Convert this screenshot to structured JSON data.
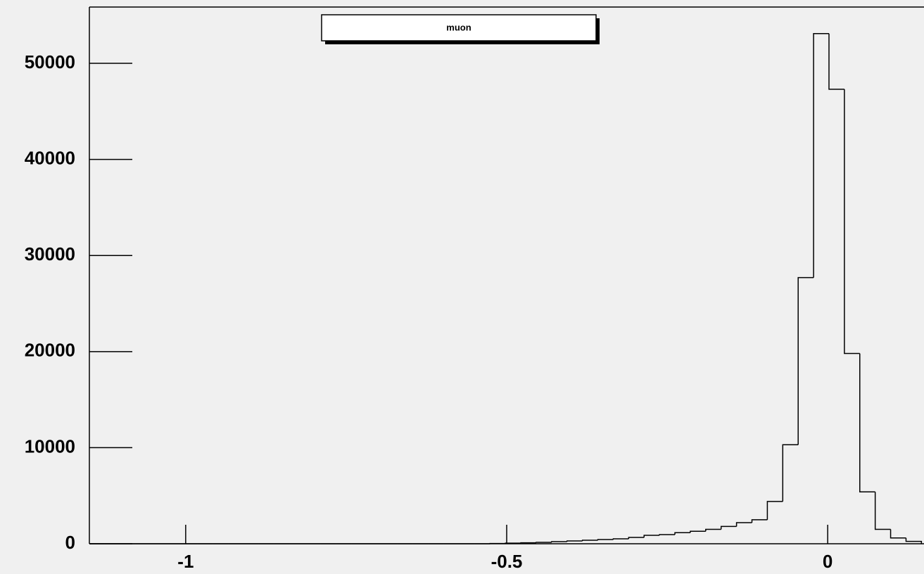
{
  "chart_data": {
    "type": "histogram",
    "bins": [
      -1.15,
      -1.126,
      -1.102,
      -1.078,
      -1.054,
      -1.03,
      -1.006,
      -0.982,
      -0.958,
      -0.934,
      -0.91,
      -0.886,
      -0.862,
      -0.838,
      -0.814,
      -0.79,
      -0.766,
      -0.742,
      -0.718,
      -0.694,
      -0.67,
      -0.646,
      -0.622,
      -0.598,
      -0.574,
      -0.55,
      -0.526,
      -0.502,
      -0.478,
      -0.454,
      -0.43,
      -0.406,
      -0.382,
      -0.358,
      -0.334,
      -0.31,
      -0.286,
      -0.262,
      -0.238,
      -0.214,
      -0.19,
      -0.166,
      -0.142,
      -0.118,
      -0.094,
      -0.07,
      -0.046,
      -0.022,
      0.002,
      0.026,
      0.05,
      0.074,
      0.098,
      0.122,
      0.146
    ],
    "series": [
      {
        "name": "muon",
        "color": "#000000",
        "values": [
          0,
          0,
          0,
          0,
          0,
          0,
          0,
          0,
          0,
          0,
          0,
          0,
          0,
          0,
          0,
          0,
          0,
          0,
          0,
          0,
          0,
          0,
          0,
          0,
          0,
          0,
          30,
          60,
          100,
          150,
          220,
          290,
          370,
          440,
          510,
          660,
          880,
          950,
          1150,
          1300,
          1500,
          1800,
          2200,
          2500,
          4400,
          10300,
          27700,
          53100,
          47300,
          19800,
          5400,
          1500,
          600,
          250
        ]
      }
    ],
    "xlim": [
      -1.15,
      0.15
    ],
    "xticks": [
      -1,
      -0.5,
      0
    ],
    "ylim": [
      0,
      55860
    ],
    "yticks": [
      0,
      10000,
      20000,
      30000,
      40000,
      50000
    ]
  }
}
